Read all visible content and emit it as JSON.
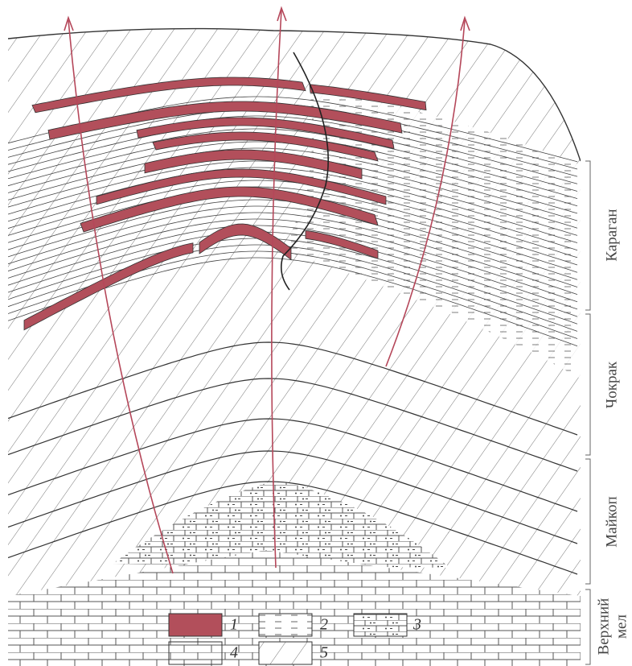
{
  "legend": {
    "items": [
      {
        "label": "1"
      },
      {
        "label": "2"
      },
      {
        "label": "3"
      },
      {
        "label": "4"
      },
      {
        "label": "5"
      }
    ]
  },
  "formations": [
    {
      "label": "Караган"
    },
    {
      "label": "Чокрак"
    },
    {
      "label": "Майкоп"
    },
    {
      "lines": [
        "Верхний",
        "мел"
      ]
    }
  ]
}
